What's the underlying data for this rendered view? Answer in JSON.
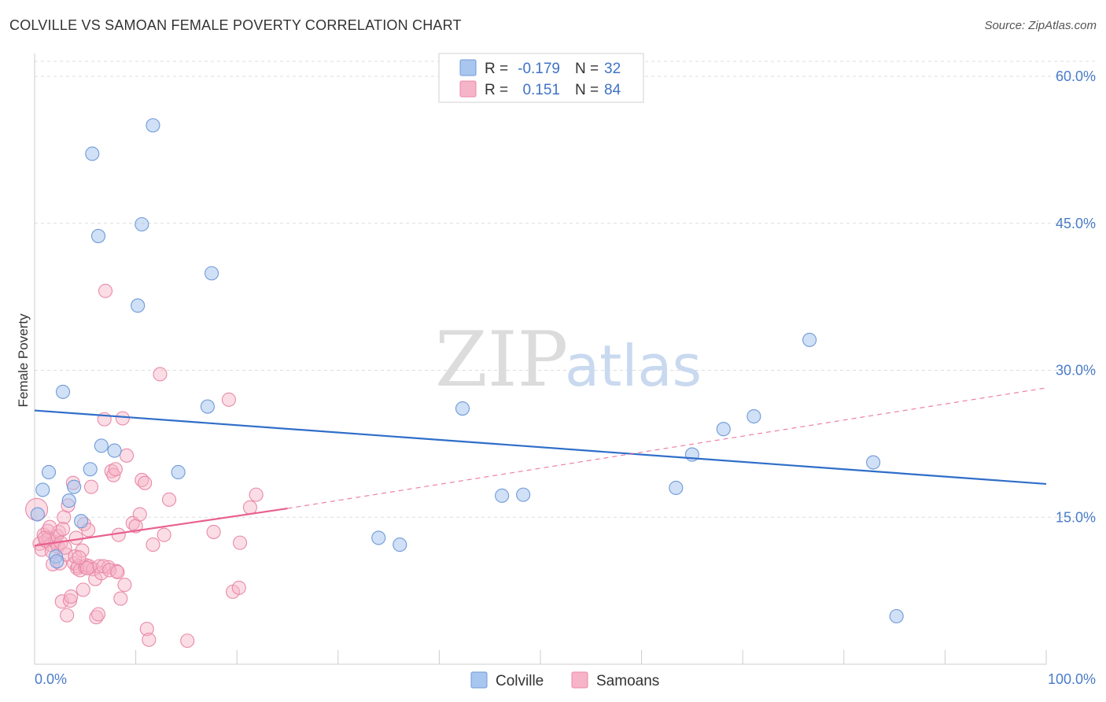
{
  "header": {
    "title": "COLVILLE VS SAMOAN FEMALE POVERTY CORRELATION CHART",
    "source": "Source: ZipAtlas.com"
  },
  "watermark": {
    "part1": "ZIP",
    "part2": "atlas"
  },
  "colors": {
    "colville_fill": "#a9c6ef",
    "colville_stroke": "#6f9ad8",
    "colville_line": "#2f6ec9",
    "samoans_fill": "#f6b4c8",
    "samoans_stroke": "#e98aa8",
    "samoans_line": "#e8608f",
    "grid": "#dddddd",
    "axis_text": "#4a7cc9"
  },
  "legend": {
    "r_label": "R =",
    "n_label": "N =",
    "rows": [
      {
        "series": "colville",
        "r": "-0.179",
        "n": "32"
      },
      {
        "series": "samoans",
        "r": "0.151",
        "n": "84"
      }
    ]
  },
  "chart_data": {
    "type": "scatter",
    "title": "COLVILLE VS SAMOAN FEMALE POVERTY CORRELATION CHART",
    "xlabel": "",
    "ylabel": "Female Poverty",
    "xlim": [
      0,
      100
    ],
    "ylim": [
      0,
      60
    ],
    "x_tick_labels": [
      "0.0%",
      "100.0%"
    ],
    "y_ticks": [
      15,
      30,
      45,
      60
    ],
    "y_tick_labels": [
      "15.0%",
      "30.0%",
      "45.0%",
      "60.0%"
    ],
    "grid": true,
    "legend_position": "top-center",
    "series": [
      {
        "name": "Colville",
        "r": -0.179,
        "n": 32,
        "trend": {
          "x0": 0,
          "y0": 25.9,
          "x1": 100,
          "y1": 18.4,
          "style": "solid"
        },
        "points": [
          [
            0.3,
            15.3
          ],
          [
            0.8,
            17.8
          ],
          [
            1.4,
            19.6
          ],
          [
            2.1,
            11.0
          ],
          [
            2.2,
            10.5
          ],
          [
            2.8,
            27.8
          ],
          [
            3.4,
            16.7
          ],
          [
            3.9,
            18.1
          ],
          [
            4.6,
            14.6
          ],
          [
            5.5,
            19.9
          ],
          [
            5.7,
            52.1
          ],
          [
            6.3,
            43.7
          ],
          [
            6.6,
            22.3
          ],
          [
            7.9,
            21.8
          ],
          [
            10.2,
            36.6
          ],
          [
            10.6,
            44.9
          ],
          [
            11.7,
            55.0
          ],
          [
            14.2,
            19.6
          ],
          [
            17.1,
            26.3
          ],
          [
            17.5,
            39.9
          ],
          [
            34.0,
            12.9
          ],
          [
            36.1,
            12.2
          ],
          [
            42.3,
            26.1
          ],
          [
            46.2,
            17.2
          ],
          [
            48.3,
            17.3
          ],
          [
            63.4,
            18.0
          ],
          [
            65.0,
            21.4
          ],
          [
            68.1,
            24.0
          ],
          [
            71.1,
            25.3
          ],
          [
            76.6,
            33.1
          ],
          [
            82.9,
            20.6
          ],
          [
            85.2,
            4.9
          ]
        ]
      },
      {
        "name": "Samoans",
        "r": 0.151,
        "n": 84,
        "trend_solid": {
          "x0": 0,
          "y0": 12.1,
          "x1": 25,
          "y1": 15.9
        },
        "trend_dashed": {
          "x0": 25,
          "y0": 15.9,
          "x1": 100,
          "y1": 28.2
        },
        "points": [
          [
            0.2,
            15.8
          ],
          [
            0.5,
            12.3
          ],
          [
            0.7,
            11.7
          ],
          [
            0.9,
            13.2
          ],
          [
            1.1,
            12.6
          ],
          [
            1.3,
            13.6
          ],
          [
            1.4,
            12.9
          ],
          [
            1.6,
            12.2
          ],
          [
            1.7,
            11.5
          ],
          [
            1.8,
            10.2
          ],
          [
            2.0,
            12.5
          ],
          [
            2.2,
            13.1
          ],
          [
            2.3,
            12.0
          ],
          [
            2.4,
            13.5
          ],
          [
            2.5,
            10.3
          ],
          [
            2.6,
            12.4
          ],
          [
            2.7,
            6.4
          ],
          [
            2.9,
            15.0
          ],
          [
            3.1,
            11.2
          ],
          [
            3.2,
            5.0
          ],
          [
            3.3,
            16.2
          ],
          [
            3.5,
            6.5
          ],
          [
            3.6,
            6.9
          ],
          [
            3.8,
            18.5
          ],
          [
            3.9,
            10.3
          ],
          [
            4.0,
            11.0
          ],
          [
            4.1,
            12.9
          ],
          [
            4.2,
            9.8
          ],
          [
            4.3,
            10.0
          ],
          [
            4.5,
            9.6
          ],
          [
            4.7,
            11.6
          ],
          [
            4.8,
            7.6
          ],
          [
            4.9,
            14.3
          ],
          [
            5.0,
            9.9
          ],
          [
            5.1,
            10.1
          ],
          [
            5.3,
            13.7
          ],
          [
            5.4,
            10.0
          ],
          [
            5.6,
            18.1
          ],
          [
            5.8,
            9.7
          ],
          [
            6.0,
            8.7
          ],
          [
            6.1,
            4.8
          ],
          [
            6.3,
            5.1
          ],
          [
            6.4,
            10.0
          ],
          [
            6.6,
            9.3
          ],
          [
            6.9,
            25.0
          ],
          [
            7.0,
            38.1
          ],
          [
            7.3,
            9.9
          ],
          [
            7.6,
            19.7
          ],
          [
            7.8,
            19.3
          ],
          [
            8.0,
            19.9
          ],
          [
            8.1,
            9.5
          ],
          [
            8.3,
            13.2
          ],
          [
            8.5,
            6.7
          ],
          [
            8.7,
            25.1
          ],
          [
            8.9,
            8.1
          ],
          [
            9.1,
            21.3
          ],
          [
            9.7,
            14.4
          ],
          [
            10.0,
            14.1
          ],
          [
            10.4,
            15.3
          ],
          [
            10.6,
            18.8
          ],
          [
            10.9,
            18.5
          ],
          [
            11.1,
            3.6
          ],
          [
            11.3,
            2.5
          ],
          [
            11.7,
            12.2
          ],
          [
            12.4,
            29.6
          ],
          [
            12.8,
            13.2
          ],
          [
            13.3,
            16.8
          ],
          [
            15.1,
            2.4
          ],
          [
            17.7,
            13.5
          ],
          [
            19.2,
            27.0
          ],
          [
            19.6,
            7.4
          ],
          [
            20.2,
            7.8
          ],
          [
            20.3,
            12.4
          ],
          [
            21.3,
            16.0
          ],
          [
            21.9,
            17.3
          ],
          [
            1.0,
            12.9
          ],
          [
            1.5,
            14.0
          ],
          [
            2.8,
            13.8
          ],
          [
            3.0,
            11.9
          ],
          [
            4.4,
            10.9
          ],
          [
            5.2,
            9.8
          ],
          [
            6.8,
            10.0
          ],
          [
            7.4,
            9.6
          ],
          [
            8.2,
            9.4
          ]
        ]
      }
    ]
  },
  "bottom_legend": {
    "items": [
      {
        "series": "colville",
        "label": "Colville"
      },
      {
        "series": "samoans",
        "label": "Samoans"
      }
    ]
  }
}
